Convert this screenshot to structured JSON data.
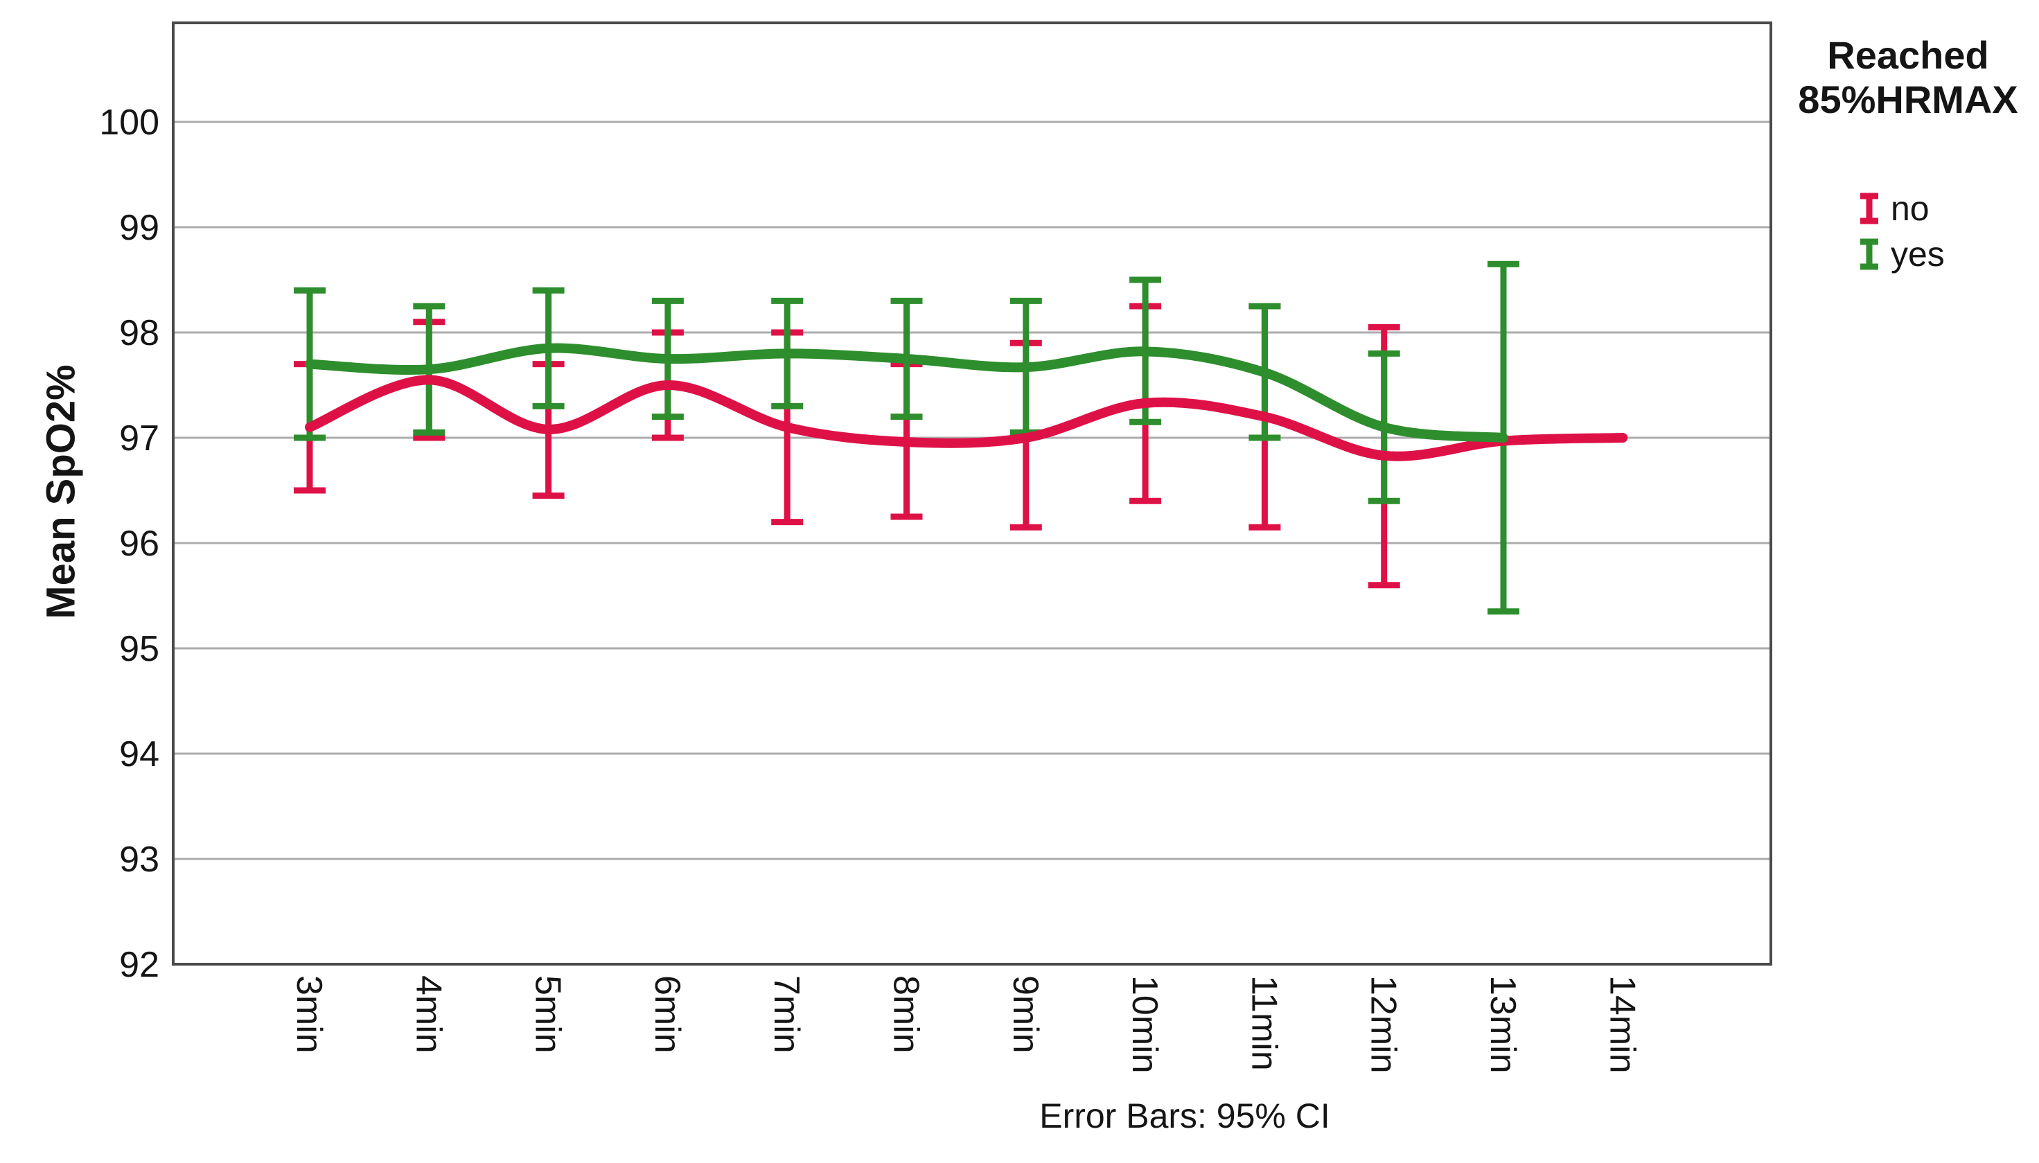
{
  "caption": "Error Bars: 95% CI",
  "legend": {
    "title_line1": "Reached",
    "title_line2": "85%HRMAX"
  },
  "colors": {
    "series_no": "#DE1147",
    "series_yes": "#2E8E2D",
    "gridline": "#ACACAC",
    "frame": "#4A4A4A",
    "text": "#151515",
    "background": "#FFFFFF"
  },
  "chart_data": {
    "type": "line",
    "title": "",
    "xlabel": "",
    "ylabel": "Mean SpO2%",
    "categories": [
      "3min",
      "4min",
      "5min",
      "6min",
      "7min",
      "8min",
      "9min",
      "10min",
      "11min",
      "12min",
      "13min",
      "14min"
    ],
    "y_ticks": [
      100,
      99,
      98,
      97,
      96,
      95,
      94,
      93,
      92
    ],
    "ylim": [
      92,
      100.94
    ],
    "grid": "horizontal",
    "legend_title": "Reached 85%HRMAX",
    "legend_position": "top-right",
    "error_bars": "95% CI",
    "interpolation": "spline",
    "series": [
      {
        "name": "no",
        "color": "#DE1147",
        "means": [
          97.1,
          97.55,
          97.08,
          97.5,
          97.1,
          96.96,
          97.0,
          97.33,
          97.2,
          96.83,
          96.97,
          97.0
        ],
        "ci_low": [
          96.5,
          97.0,
          96.45,
          97.0,
          96.2,
          96.25,
          96.15,
          96.4,
          96.15,
          95.6,
          null,
          null
        ],
        "ci_high": [
          97.7,
          98.1,
          97.7,
          98.0,
          98.0,
          97.7,
          97.9,
          98.25,
          98.25,
          98.05,
          null,
          null
        ]
      },
      {
        "name": "yes",
        "color": "#2E8E2D",
        "means": [
          97.7,
          97.65,
          97.85,
          97.75,
          97.8,
          97.75,
          97.67,
          97.82,
          97.62,
          97.1,
          97.0,
          null
        ],
        "ci_low": [
          97.0,
          97.05,
          97.3,
          97.2,
          97.3,
          97.2,
          97.05,
          97.15,
          97.0,
          96.4,
          95.35,
          null
        ],
        "ci_high": [
          98.4,
          98.25,
          98.4,
          98.3,
          98.3,
          98.3,
          98.3,
          98.5,
          98.25,
          97.8,
          98.65,
          null
        ]
      }
    ]
  }
}
